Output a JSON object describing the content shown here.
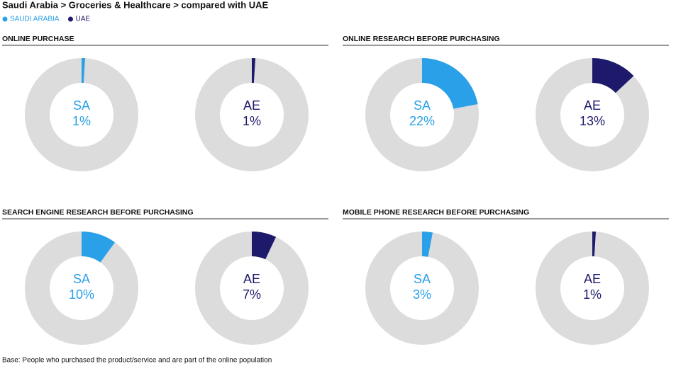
{
  "header": {
    "title": "Saudi Arabia > Groceries & Healthcare > compared with UAE",
    "legend": [
      {
        "name": "SAUDI ARABIA",
        "color": "#29a0e8"
      },
      {
        "name": "UAE",
        "color": "#1d1a6b"
      }
    ]
  },
  "chart_data": [
    {
      "type": "donut",
      "title": "ONLINE PURCHASE",
      "categories": [
        "SA",
        "AE"
      ],
      "values": [
        1,
        1
      ],
      "value_labels": [
        "1%",
        "1%"
      ],
      "colors": [
        "#29a0e8",
        "#1d1a6b"
      ],
      "track_color": "#dcdcdc",
      "ylim": [
        0,
        100
      ]
    },
    {
      "type": "donut",
      "title": "ONLINE RESEARCH BEFORE PURCHASING",
      "categories": [
        "SA",
        "AE"
      ],
      "values": [
        22,
        13
      ],
      "value_labels": [
        "22%",
        "13%"
      ],
      "colors": [
        "#29a0e8",
        "#1d1a6b"
      ],
      "track_color": "#dcdcdc",
      "ylim": [
        0,
        100
      ]
    },
    {
      "type": "donut",
      "title": "SEARCH ENGINE RESEARCH BEFORE PURCHASING",
      "categories": [
        "SA",
        "AE"
      ],
      "values": [
        10,
        7
      ],
      "value_labels": [
        "10%",
        "7%"
      ],
      "colors": [
        "#29a0e8",
        "#1d1a6b"
      ],
      "track_color": "#dcdcdc",
      "ylim": [
        0,
        100
      ]
    },
    {
      "type": "donut",
      "title": "MOBILE PHONE RESEARCH BEFORE PURCHASING",
      "categories": [
        "SA",
        "AE"
      ],
      "values": [
        3,
        1
      ],
      "value_labels": [
        "3%",
        "1%"
      ],
      "colors": [
        "#29a0e8",
        "#1d1a6b"
      ],
      "track_color": "#dcdcdc",
      "ylim": [
        0,
        100
      ]
    }
  ],
  "footer": "Base: People who purchased the product/service and are part of the online population"
}
